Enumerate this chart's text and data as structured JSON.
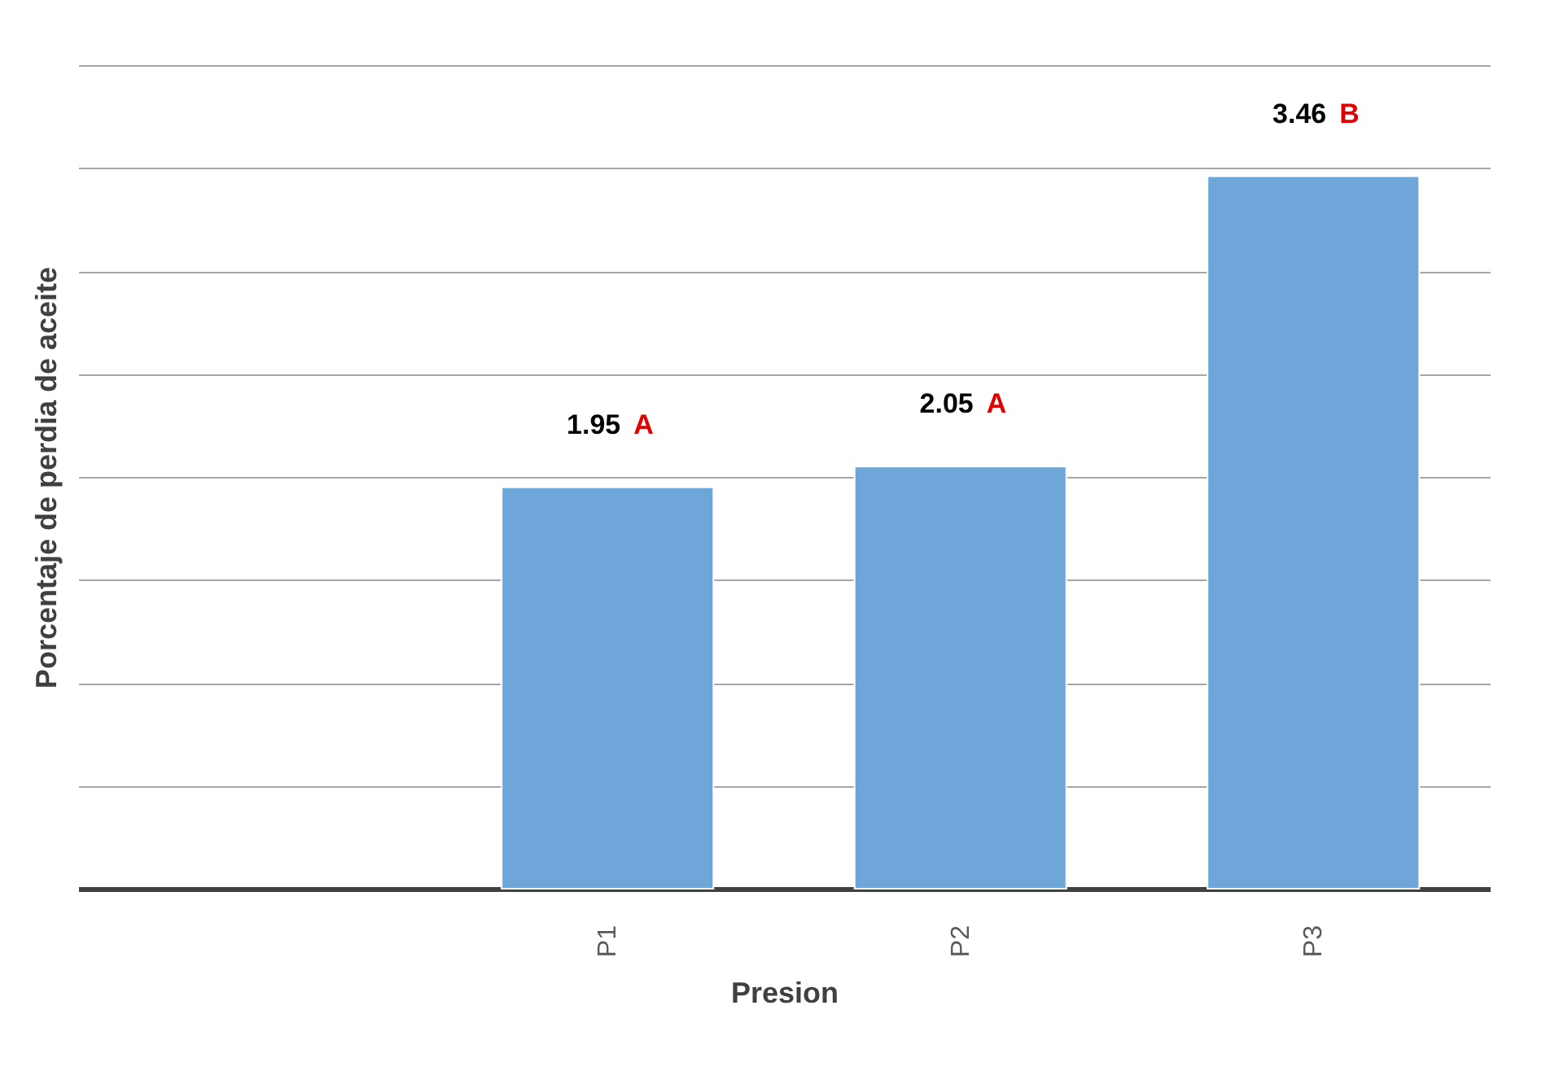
{
  "chart_data": {
    "type": "bar",
    "xlabel": "Presion",
    "ylabel": "Porcentaje de perdia de aceite",
    "categories": [
      null,
      "P1",
      "P2",
      "P3"
    ],
    "values": [
      null,
      1.95,
      2.05,
      3.46
    ],
    "value_labels": [
      null,
      "1.95",
      "2.05",
      "3.46"
    ],
    "color": "#6fa6da",
    "ylim": [
      0,
      4
    ],
    "yticks": [
      {
        "value": 0,
        "label": null
      },
      {
        "value": 0.5,
        "label": null
      },
      {
        "value": 1,
        "label": null
      },
      {
        "value": 1.5,
        "label": null
      },
      {
        "value": 2,
        "label": null
      },
      {
        "value": 2.5,
        "label": null
      },
      {
        "value": 3,
        "label": null
      },
      {
        "value": 3.5,
        "label": null
      },
      {
        "value": 4,
        "label": null
      }
    ],
    "tick_labels": "x",
    "grid": "y",
    "annotations": [
      {
        "text": "A",
        "x": "P1",
        "y": 1.95
      },
      {
        "text": "A",
        "x": "P2",
        "y": 2.05
      },
      {
        "text": "B",
        "x": "P3",
        "y": 3.46
      }
    ]
  }
}
